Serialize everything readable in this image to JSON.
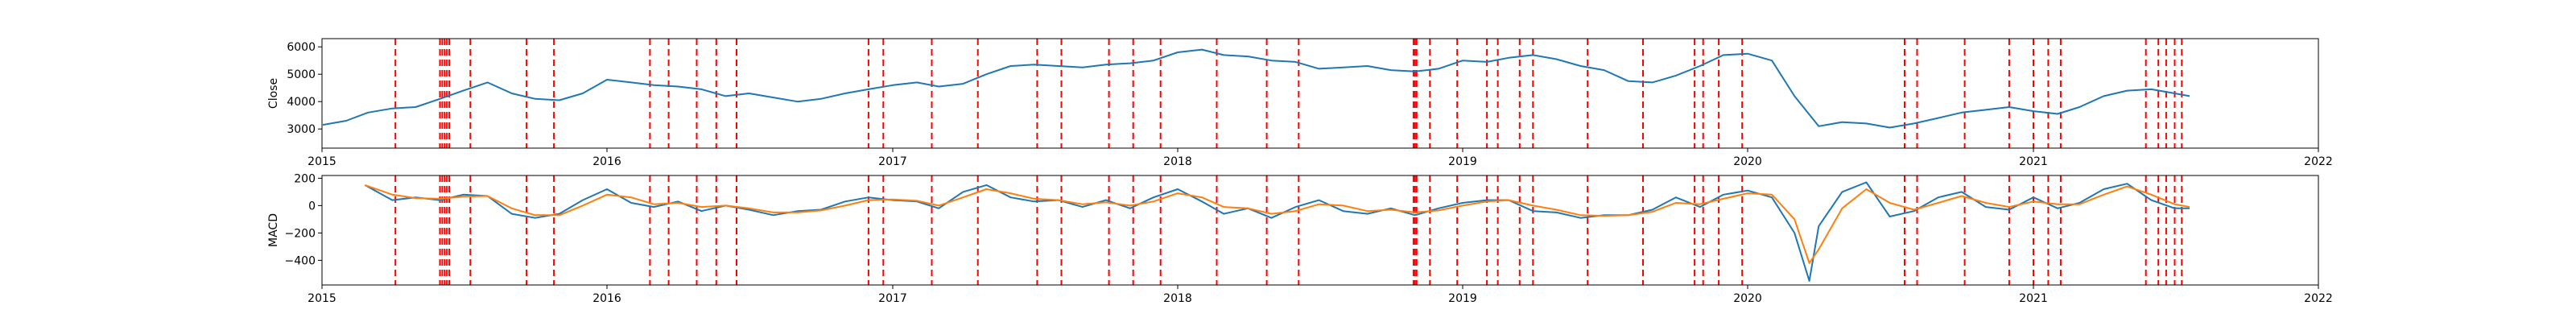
{
  "chart_data": [
    {
      "type": "line",
      "ylabel": "Close",
      "xlabel": "",
      "title": "",
      "xlim": [
        "2015-01-01",
        "2022-01-01"
      ],
      "ylim": [
        2300,
        6300
      ],
      "x_ticks": [
        "2015",
        "2016",
        "2017",
        "2018",
        "2019",
        "2020",
        "2021",
        "2022"
      ],
      "y_ticks": [
        3000,
        4000,
        5000,
        6000
      ],
      "grid": false,
      "legend": "none",
      "colors": {
        "close": "#1f77b4",
        "event": "#ff0000"
      },
      "series": [
        {
          "x": [
            "2015-01-02",
            "2015-02-01",
            "2015-03-01",
            "2015-04-01",
            "2015-05-01",
            "2015-06-01",
            "2015-07-01",
            "2015-08-01",
            "2015-09-01",
            "2015-10-01",
            "2015-11-01",
            "2015-12-01",
            "2016-01-01",
            "2016-02-01",
            "2016-03-01",
            "2016-04-01",
            "2016-05-01",
            "2016-06-01",
            "2016-07-01",
            "2016-08-01",
            "2016-09-01",
            "2016-10-01",
            "2016-11-01",
            "2016-12-01",
            "2017-01-01",
            "2017-02-01",
            "2017-03-01",
            "2017-04-01",
            "2017-05-01",
            "2017-06-01",
            "2017-07-01",
            "2017-08-01",
            "2017-09-01",
            "2017-10-01",
            "2017-11-01",
            "2017-12-01",
            "2018-01-01",
            "2018-02-01",
            "2018-03-01",
            "2018-04-01",
            "2018-05-01",
            "2018-06-01",
            "2018-07-01",
            "2018-08-01",
            "2018-09-01",
            "2018-10-01",
            "2018-11-01",
            "2018-12-01",
            "2019-01-01",
            "2019-02-01",
            "2019-03-01",
            "2019-04-01",
            "2019-05-01",
            "2019-06-01",
            "2019-07-01",
            "2019-08-01",
            "2019-09-01",
            "2019-10-01",
            "2019-11-01",
            "2019-12-01",
            "2020-01-01",
            "2020-02-01",
            "2020-03-01",
            "2020-04-01",
            "2020-05-01",
            "2020-06-01",
            "2020-07-01",
            "2020-08-01",
            "2020-09-01",
            "2020-10-01",
            "2020-11-01",
            "2020-12-01",
            "2021-01-01",
            "2021-02-01",
            "2021-03-01",
            "2021-04-01",
            "2021-05-01",
            "2021-06-01",
            "2021-07-01",
            "2021-07-20"
          ],
          "values": [
            3150,
            3300,
            3600,
            3750,
            3800,
            4100,
            4400,
            4700,
            4300,
            4100,
            4050,
            4300,
            4800,
            4700,
            4600,
            4550,
            4450,
            4200,
            4300,
            4150,
            4000,
            4100,
            4300,
            4450,
            4600,
            4700,
            4550,
            4650,
            5000,
            5300,
            5350,
            5300,
            5250,
            5350,
            5400,
            5500,
            5800,
            5900,
            5700,
            5650,
            5500,
            5450,
            5200,
            5250,
            5300,
            5150,
            5100,
            5200,
            5500,
            5450,
            5600,
            5700,
            5550,
            5300,
            5150,
            4750,
            4700,
            4950,
            5300,
            5700,
            5750,
            5500,
            4200,
            3100,
            3250,
            3200,
            3050,
            3200,
            3400,
            3600,
            3700,
            3800,
            3650,
            3550,
            3800,
            4200,
            4400,
            4450,
            4300,
            4200
          ]
        }
      ],
      "event_dates": [
        "2015-04-05",
        "2015-06-01",
        "2015-06-04",
        "2015-06-07",
        "2015-06-10",
        "2015-06-13",
        "2015-07-10",
        "2015-09-20",
        "2015-10-25",
        "2016-02-25",
        "2016-03-20",
        "2016-04-25",
        "2016-05-20",
        "2016-06-15",
        "2016-12-01",
        "2016-12-20",
        "2017-02-20",
        "2017-04-20",
        "2017-07-05",
        "2017-08-05",
        "2017-10-05",
        "2017-11-05",
        "2017-12-10",
        "2018-02-20",
        "2018-04-25",
        "2018-06-05",
        "2018-10-30",
        "2018-11-01",
        "2018-11-03",
        "2018-11-20",
        "2018-12-25",
        "2019-02-01",
        "2019-02-15",
        "2019-03-15",
        "2019-04-01",
        "2019-06-10",
        "2019-08-20",
        "2019-10-25",
        "2019-11-05",
        "2019-11-25",
        "2019-12-25",
        "2020-07-20",
        "2020-08-05",
        "2020-10-05",
        "2020-12-01",
        "2021-01-01",
        "2021-01-20",
        "2021-02-05",
        "2021-05-25",
        "2021-06-10",
        "2021-06-20",
        "2021-07-01",
        "2021-07-10"
      ]
    },
    {
      "type": "line",
      "ylabel": "MACD",
      "xlabel": "",
      "title": "",
      "xlim": [
        "2015-01-01",
        "2022-01-01"
      ],
      "ylim": [
        -580,
        220
      ],
      "x_ticks": [
        "2015",
        "2016",
        "2017",
        "2018",
        "2019",
        "2020",
        "2021",
        "2022"
      ],
      "y_ticks": [
        -400,
        -200,
        0,
        200
      ],
      "grid": false,
      "legend": "none",
      "colors": {
        "macd": "#1f77b4",
        "signal": "#ff7f0e",
        "event": "#ff0000"
      },
      "series": [
        {
          "x": [
            "2015-02-25",
            "2015-04-01",
            "2015-05-01",
            "2015-06-01",
            "2015-07-01",
            "2015-08-01",
            "2015-09-01",
            "2015-10-01",
            "2015-11-01",
            "2015-12-01",
            "2016-01-01",
            "2016-02-01",
            "2016-03-01",
            "2016-04-01",
            "2016-05-01",
            "2016-06-01",
            "2016-07-01",
            "2016-08-01",
            "2016-09-01",
            "2016-10-01",
            "2016-11-01",
            "2016-12-01",
            "2017-01-01",
            "2017-02-01",
            "2017-03-01",
            "2017-04-01",
            "2017-05-01",
            "2017-06-01",
            "2017-07-01",
            "2017-08-01",
            "2017-09-01",
            "2017-10-01",
            "2017-11-01",
            "2017-12-01",
            "2018-01-01",
            "2018-02-01",
            "2018-03-01",
            "2018-04-01",
            "2018-05-01",
            "2018-06-01",
            "2018-07-01",
            "2018-08-01",
            "2018-09-01",
            "2018-10-01",
            "2018-11-01",
            "2018-12-01",
            "2019-01-01",
            "2019-02-01",
            "2019-03-01",
            "2019-04-01",
            "2019-05-01",
            "2019-06-01",
            "2019-07-01",
            "2019-08-01",
            "2019-09-01",
            "2019-10-01",
            "2019-11-01",
            "2019-12-01",
            "2020-01-01",
            "2020-02-01",
            "2020-03-01",
            "2020-03-20",
            "2020-04-01",
            "2020-05-01",
            "2020-06-01",
            "2020-07-01",
            "2020-08-01",
            "2020-09-01",
            "2020-10-01",
            "2020-11-01",
            "2020-12-01",
            "2021-01-01",
            "2021-02-01",
            "2021-03-01",
            "2021-04-01",
            "2021-05-01",
            "2021-06-01",
            "2021-07-01",
            "2021-07-20"
          ],
          "values": [
            150,
            40,
            60,
            40,
            80,
            70,
            -60,
            -90,
            -60,
            40,
            120,
            20,
            -10,
            30,
            -40,
            0,
            -30,
            -70,
            -40,
            -30,
            30,
            60,
            40,
            30,
            -20,
            100,
            150,
            60,
            30,
            40,
            -10,
            40,
            -20,
            60,
            120,
            30,
            -60,
            -20,
            -90,
            -10,
            40,
            -40,
            -60,
            -20,
            -70,
            -20,
            20,
            40,
            40,
            -40,
            -50,
            -90,
            -70,
            -70,
            -30,
            60,
            -10,
            80,
            110,
            60,
            -200,
            -550,
            -150,
            100,
            170,
            -80,
            -40,
            60,
            100,
            -10,
            -30,
            60,
            -20,
            20,
            120,
            160,
            40,
            -20,
            -20
          ]
        },
        {
          "x": [
            "2015-02-25",
            "2015-04-01",
            "2015-05-01",
            "2015-06-01",
            "2015-07-01",
            "2015-08-01",
            "2015-09-01",
            "2015-10-01",
            "2015-11-01",
            "2015-12-01",
            "2016-01-01",
            "2016-02-01",
            "2016-03-01",
            "2016-04-01",
            "2016-05-01",
            "2016-06-01",
            "2016-07-01",
            "2016-08-01",
            "2016-09-01",
            "2016-10-01",
            "2016-11-01",
            "2016-12-01",
            "2017-01-01",
            "2017-02-01",
            "2017-03-01",
            "2017-04-01",
            "2017-05-01",
            "2017-06-01",
            "2017-07-01",
            "2017-08-01",
            "2017-09-01",
            "2017-10-01",
            "2017-11-01",
            "2017-12-01",
            "2018-01-01",
            "2018-02-01",
            "2018-03-01",
            "2018-04-01",
            "2018-05-01",
            "2018-06-01",
            "2018-07-01",
            "2018-08-01",
            "2018-09-01",
            "2018-10-01",
            "2018-11-01",
            "2018-12-01",
            "2019-01-01",
            "2019-02-01",
            "2019-03-01",
            "2019-04-01",
            "2019-05-01",
            "2019-06-01",
            "2019-07-01",
            "2019-08-01",
            "2019-09-01",
            "2019-10-01",
            "2019-11-01",
            "2019-12-01",
            "2020-01-01",
            "2020-02-01",
            "2020-03-01",
            "2020-03-20",
            "2020-04-01",
            "2020-05-01",
            "2020-06-01",
            "2020-07-01",
            "2020-08-01",
            "2020-09-01",
            "2020-10-01",
            "2020-11-01",
            "2020-12-01",
            "2021-01-01",
            "2021-02-01",
            "2021-03-01",
            "2021-04-01",
            "2021-05-01",
            "2021-06-01",
            "2021-07-01",
            "2021-07-20"
          ],
          "values": [
            150,
            80,
            55,
            50,
            65,
            70,
            -20,
            -70,
            -70,
            0,
            80,
            60,
            10,
            20,
            -10,
            0,
            -20,
            -50,
            -50,
            -35,
            0,
            40,
            45,
            35,
            0,
            60,
            120,
            90,
            50,
            40,
            10,
            25,
            0,
            30,
            90,
            60,
            -10,
            -20,
            -60,
            -40,
            10,
            0,
            -40,
            -30,
            -50,
            -35,
            0,
            30,
            40,
            0,
            -30,
            -70,
            -75,
            -70,
            -45,
            20,
            10,
            50,
            90,
            80,
            -100,
            -420,
            -320,
            -20,
            120,
            20,
            -30,
            20,
            70,
            20,
            -10,
            30,
            10,
            10,
            80,
            140,
            80,
            10,
            -10
          ]
        }
      ],
      "event_dates": [
        "2015-04-05",
        "2015-06-01",
        "2015-06-04",
        "2015-06-07",
        "2015-06-10",
        "2015-06-13",
        "2015-07-10",
        "2015-09-20",
        "2015-10-25",
        "2016-02-25",
        "2016-03-20",
        "2016-04-25",
        "2016-05-20",
        "2016-06-15",
        "2016-12-01",
        "2016-12-20",
        "2017-02-20",
        "2017-04-20",
        "2017-07-05",
        "2017-08-05",
        "2017-10-05",
        "2017-11-05",
        "2017-12-10",
        "2018-02-20",
        "2018-04-25",
        "2018-06-05",
        "2018-10-30",
        "2018-11-01",
        "2018-11-03",
        "2018-11-20",
        "2018-12-25",
        "2019-02-01",
        "2019-02-15",
        "2019-03-15",
        "2019-04-01",
        "2019-06-10",
        "2019-08-20",
        "2019-10-25",
        "2019-11-05",
        "2019-11-25",
        "2019-12-25",
        "2020-07-20",
        "2020-08-05",
        "2020-10-05",
        "2020-12-01",
        "2021-01-01",
        "2021-01-20",
        "2021-02-05",
        "2021-05-25",
        "2021-06-10",
        "2021-06-20",
        "2021-07-01",
        "2021-07-10"
      ]
    }
  ]
}
